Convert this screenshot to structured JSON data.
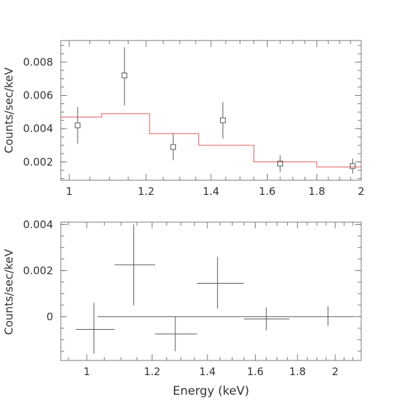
{
  "chart_data": [
    {
      "type": "scatter",
      "panel": "top",
      "ylabel": "Counts/sec/keV",
      "xlabel": "",
      "x_ticks": [
        "1",
        "1.2",
        "1.4",
        "1.6",
        "1.8",
        "2"
      ],
      "y_ticks": [
        "0.002",
        "0.004",
        "0.006",
        "0.008"
      ],
      "xlim": [
        0.98,
        2.0
      ],
      "ylim": [
        0.0009,
        0.0093
      ],
      "x_scale": "log",
      "grid": false,
      "colors": {
        "data": "#555555",
        "model": "#e05a5a",
        "axes": "#777777"
      },
      "series": [
        {
          "kind": "data",
          "points": [
            {
              "x": 1.02,
              "xlo": 1.02,
              "xhi": 1.02,
              "y": 0.0042,
              "ylo": 0.0031,
              "yhi": 0.0053
            },
            {
              "x": 1.14,
              "xlo": 1.14,
              "xhi": 1.14,
              "y": 0.0072,
              "ylo": 0.0054,
              "yhi": 0.0089
            },
            {
              "x": 1.28,
              "xlo": 1.28,
              "xhi": 1.28,
              "y": 0.0029,
              "ylo": 0.0021,
              "yhi": 0.0037
            },
            {
              "x": 1.44,
              "xlo": 1.44,
              "xhi": 1.44,
              "y": 0.0045,
              "ylo": 0.0034,
              "yhi": 0.0056
            },
            {
              "x": 1.65,
              "xlo": 1.65,
              "xhi": 1.65,
              "y": 0.0019,
              "ylo": 0.0014,
              "yhi": 0.0024
            },
            {
              "x": 1.96,
              "xlo": 1.96,
              "xhi": 1.96,
              "y": 0.00175,
              "ylo": 0.0013,
              "yhi": 0.0022
            }
          ]
        },
        {
          "kind": "model-steps",
          "steps": [
            {
              "x0": 0.98,
              "x1": 1.08,
              "y": 0.0047
            },
            {
              "x0": 1.08,
              "x1": 1.21,
              "y": 0.0049
            },
            {
              "x0": 1.21,
              "x1": 1.36,
              "y": 0.0037
            },
            {
              "x0": 1.36,
              "x1": 1.55,
              "y": 0.003
            },
            {
              "x0": 1.55,
              "x1": 1.8,
              "y": 0.002
            },
            {
              "x0": 1.8,
              "x1": 2.0,
              "y": 0.0017
            }
          ]
        }
      ]
    },
    {
      "type": "scatter",
      "panel": "bottom",
      "ylabel": "Counts/sec/keV",
      "xlabel": "Energy (keV)",
      "x_ticks": [
        "1",
        "1.2",
        "1.4",
        "1.6",
        "1.8",
        "2"
      ],
      "y_ticks": [
        "0",
        "0.002",
        "0.004"
      ],
      "xlim": [
        0.93,
        2.15
      ],
      "ylim": [
        -0.0019,
        0.0041
      ],
      "x_scale": "log",
      "grid": false,
      "colors": {
        "data": "#555555",
        "model": "#555555",
        "axes": "#777777"
      },
      "series": [
        {
          "kind": "data-crosses",
          "points": [
            {
              "x": 1.02,
              "xlo": 0.97,
              "xhi": 1.08,
              "y": -0.00055,
              "ylo": -0.0016,
              "yhi": 0.0006
            },
            {
              "x": 1.14,
              "xlo": 1.08,
              "xhi": 1.21,
              "y": 0.00225,
              "ylo": 0.0005,
              "yhi": 0.004
            },
            {
              "x": 1.28,
              "xlo": 1.21,
              "xhi": 1.36,
              "y": -0.00075,
              "ylo": -0.0015,
              "yhi": 0.0
            },
            {
              "x": 1.44,
              "xlo": 1.36,
              "xhi": 1.55,
              "y": 0.00145,
              "ylo": 0.00035,
              "yhi": 0.0026
            },
            {
              "x": 1.65,
              "xlo": 1.55,
              "xhi": 1.76,
              "y": -0.0001,
              "ylo": -0.0006,
              "yhi": 0.0004
            },
            {
              "x": 1.96,
              "xlo": 1.96,
              "xhi": 1.96,
              "y": 0.0,
              "ylo": -0.0004,
              "yhi": 0.00045
            }
          ]
        },
        {
          "kind": "zero-line",
          "x0": 1.03,
          "x1": 2.11,
          "y": 0
        }
      ]
    }
  ]
}
